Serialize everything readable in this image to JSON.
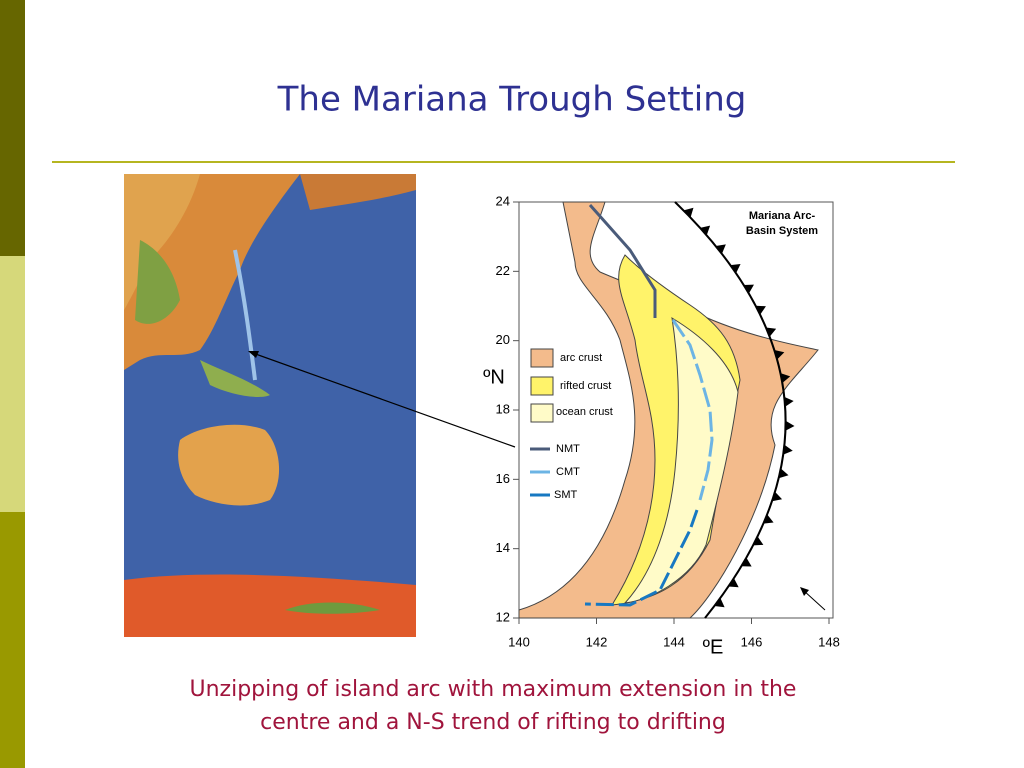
{
  "header": {
    "title": "The Mariana Trough Setting"
  },
  "figure": {
    "title": "Mariana Arc-\nBasin System",
    "y_axis": {
      "label": "ºN",
      "ticks": [
        24,
        22,
        20,
        18,
        16,
        14,
        12
      ]
    },
    "x_axis": {
      "label": "ºE",
      "ticks": [
        140,
        142,
        144,
        146,
        148
      ]
    },
    "legend": [
      {
        "label": "arc crust"
      },
      {
        "label": "rifted crust"
      },
      {
        "label": "ocean crust"
      },
      {
        "label": "NMT"
      },
      {
        "label": "CMT"
      },
      {
        "label": "SMT"
      }
    ]
  },
  "caption": {
    "lines": [
      "Unzipping of island arc with maximum extension in the",
      "centre and a N-S trend of rifting to drifting"
    ]
  }
}
